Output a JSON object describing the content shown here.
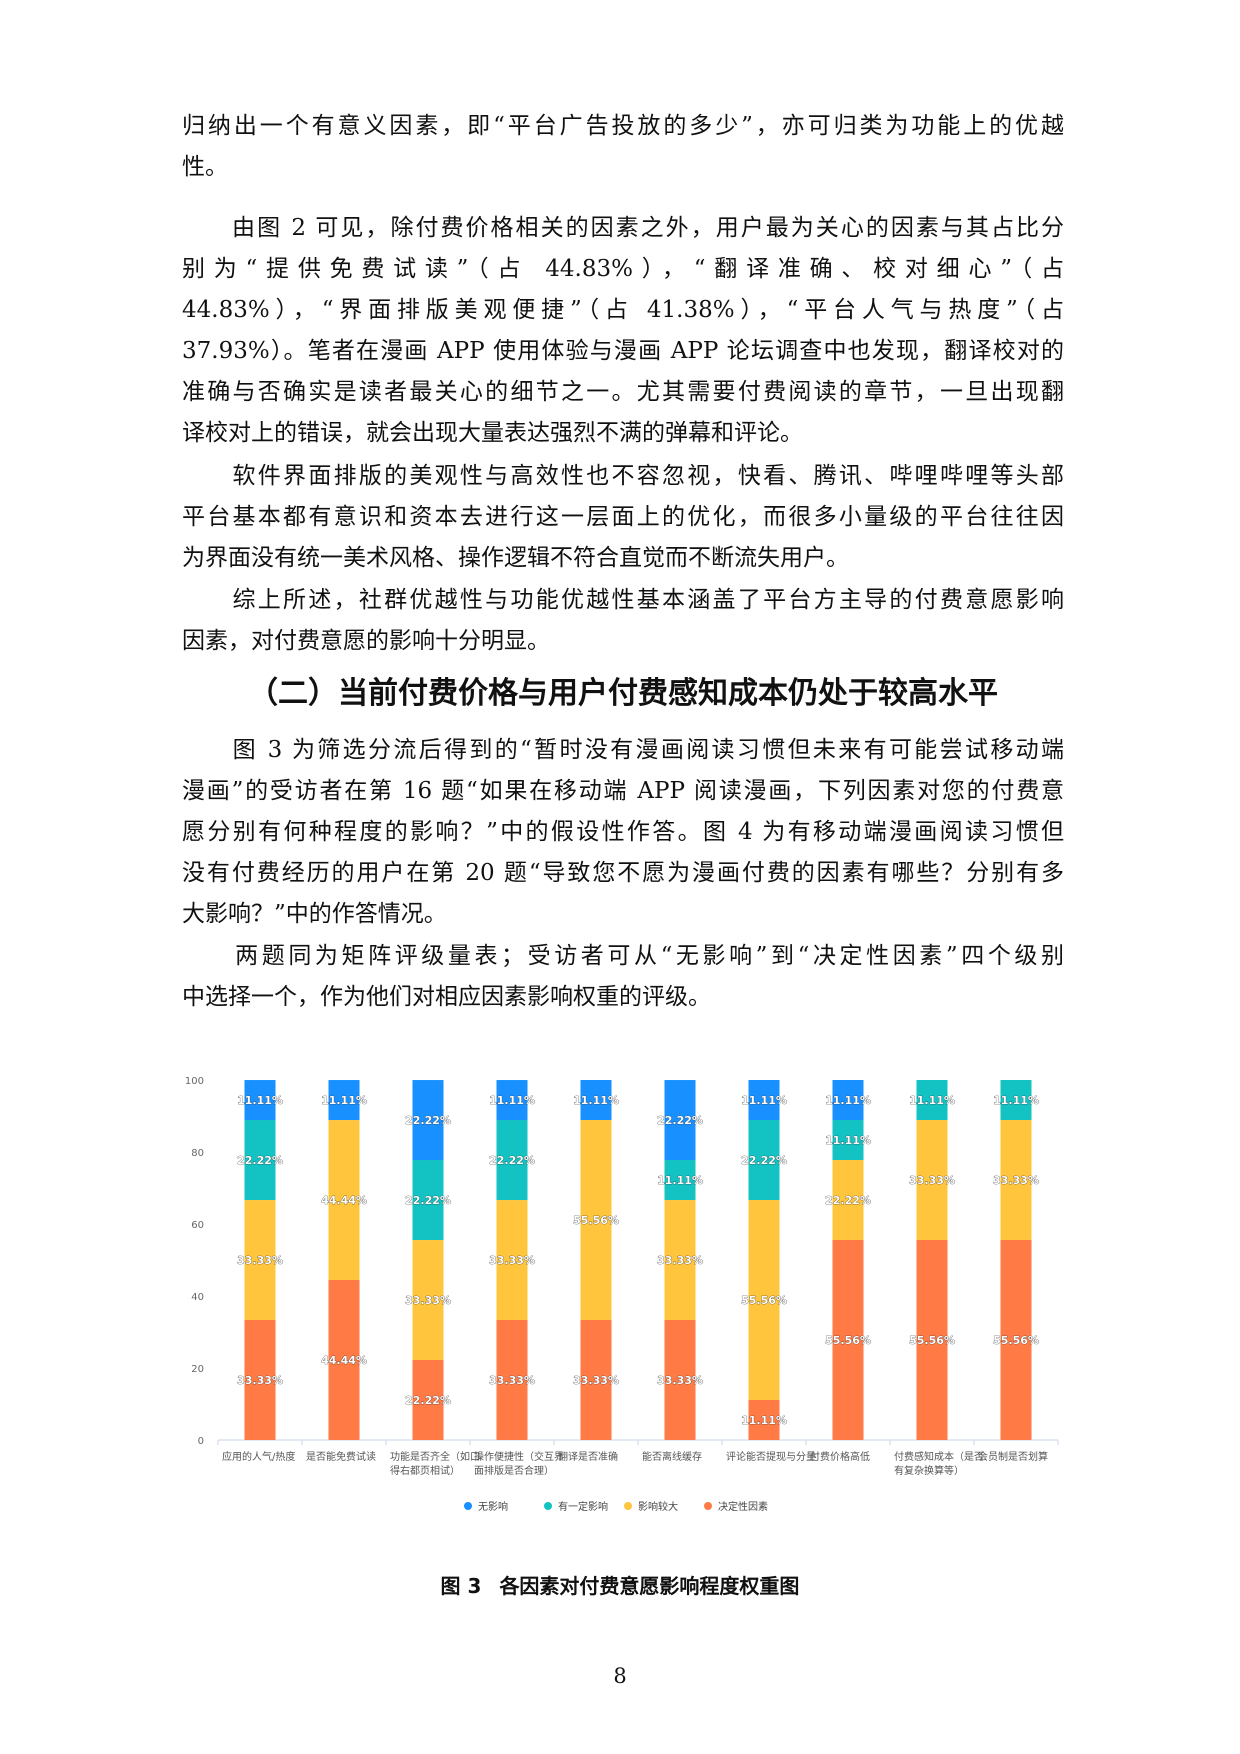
{
  "paragraphs": [
    {
      "lines": [
        "归纳出一个有意义因素，即“平台广告投放的多少”，亦可归类为功能上的优越",
        "性。"
      ]
    },
    {
      "lines": [
        "　　由图 2 可见，除付费价格相关的因素之外，用户最为关心的因素与其占比分",
        "别为“提供免费试读”（占 44.83%），“翻译准确、校对细心”（占",
        "44.83%），“界面排版美观便捷”（占 41.38%），“平台人气与热度”（占",
        "37.93%）。笔者在漫画 APP 使用体验与漫画 APP 论坛调查中也发现，翻译校对的",
        "准确与否确实是读者最关心的细节之一。尤其需要付费阅读的章节，一旦出现翻",
        "译校对上的错误，就会出现大量表达强烈不满的弹幕和评论。"
      ]
    },
    {
      "lines": [
        "　　软件界面排版的美观性与高效性也不容忽视，快看、腾讯、哔哩哔哩等头部",
        "平台基本都有意识和资本去进行这一层面上的优化，而很多小量级的平台往往因",
        "为界面没有统一美术风格、操作逻辑不符合直觉而不断流失用户。"
      ]
    },
    {
      "lines": [
        "　　综上所述，社群优越性与功能优越性基本涵盖了平台方主导的付费意愿影响",
        "因素，对付费意愿的影响十分明显。"
      ]
    },
    {
      "lines": [
        "　　图 3 为筛选分流后得到的“暂时没有漫画阅读习惯但未来有可能尝试移动端",
        "漫画”的受访者在第 16 题“如果在移动端 APP 阅读漫画，下列因素对您的付费意",
        "愿分别有何种程度的影响？”中的假设性作答。图 4 为有移动端漫画阅读习惯但",
        "没有付费经历的用户在第 20 题“导致您不愿为漫画付费的因素有哪些？分别有多",
        "大影响？”中的作答情况。"
      ]
    },
    {
      "lines": [
        "　　两题同为矩阵评级量表；受访者可从“无影响”到“决定性因素”四个级别",
        "中选择一个，作为他们对相应因素影响权重的评级。"
      ]
    }
  ],
  "section_title": "（二）当前付费价格与用户付费感知成本仍处于较高水平",
  "figure": {
    "label": "图 3",
    "title": "各因素对付费意愿影响程度权重图"
  },
  "page_number": "8",
  "chart_data": {
    "type": "bar",
    "stacked": true,
    "categories": [
      "应用的人气/热度",
      "是否能免费试读",
      "功能是否齐全（如口得右都页相试）",
      "操作便捷性（交互界面排版是否合理）",
      "翻译是否准确",
      "能否离线缓存",
      "评论能否提现与分量",
      "付费价格高低",
      "付费感知成本（是否有复杂换算等）",
      "会员制是否划算"
    ],
    "series": [
      {
        "name": "决定性因素",
        "color": "#FF7A45",
        "values": [
          33.33,
          44.44,
          22.22,
          33.33,
          33.33,
          33.33,
          11.11,
          55.56,
          55.56,
          55.56
        ]
      },
      {
        "name": "影响较大",
        "color": "#FFC53D",
        "values": [
          33.33,
          44.44,
          33.33,
          33.33,
          55.56,
          33.33,
          55.56,
          22.22,
          33.33,
          33.33
        ]
      },
      {
        "name": "有一定影响",
        "color": "#13C2C2",
        "values": [
          22.22,
          0,
          22.22,
          22.22,
          0,
          11.11,
          22.22,
          11.11,
          11.11,
          11.11
        ]
      },
      {
        "name": "无影响",
        "color": "#1890FF",
        "values": [
          11.11,
          11.11,
          22.22,
          11.11,
          11.11,
          22.22,
          11.11,
          11.11,
          0,
          0
        ]
      }
    ],
    "legend_order": [
      "无影响",
      "有一定影响",
      "影响较大",
      "决定性因素"
    ],
    "value_labels": [
      [
        33.33,
        33.33,
        22.22,
        11.11
      ],
      [
        44.44,
        44.44,
        null,
        11.11
      ],
      [
        22.22,
        33.33,
        22.22,
        22.22
      ],
      [
        33.33,
        33.33,
        22.22,
        11.11
      ],
      [
        33.33,
        55.56,
        null,
        11.11
      ],
      [
        33.33,
        33.33,
        11.11,
        22.22
      ],
      [
        11.11,
        55.56,
        22.22,
        11.11
      ],
      [
        55.56,
        22.22,
        11.11,
        11.11
      ],
      [
        55.56,
        33.33,
        11.11,
        null
      ],
      [
        55.56,
        33.33,
        11.11,
        null
      ]
    ],
    "y_ticks": [
      "0",
      "20",
      "40",
      "60",
      "80",
      "100"
    ],
    "ylim": [
      0,
      100
    ],
    "legend_position": "bottom"
  }
}
